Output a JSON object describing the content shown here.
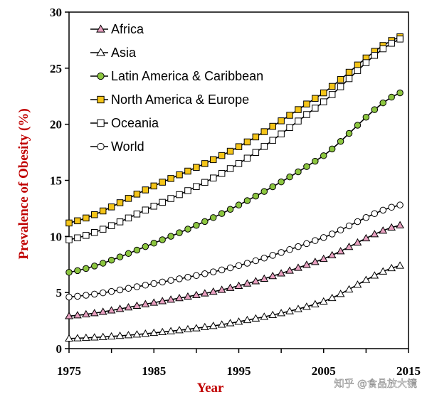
{
  "chart_data": {
    "type": "line",
    "title": "",
    "xlabel": "Year",
    "ylabel": "Prevalence of Obesity (%)",
    "xlim": [
      1975,
      2015
    ],
    "ylim": [
      0,
      30
    ],
    "xticks": [
      1975,
      1985,
      1995,
      2005,
      2015
    ],
    "yticks": [
      0,
      5,
      10,
      15,
      20,
      25,
      30
    ],
    "x_start": 1975,
    "x_end": 2014,
    "legend_position": "top-left",
    "series": [
      {
        "name": "Africa",
        "marker": "triangle",
        "fill": "#e8a0c0",
        "anchors": [
          [
            1975,
            2.9
          ],
          [
            1985,
            4.1
          ],
          [
            1995,
            5.6
          ],
          [
            2005,
            8.0
          ],
          [
            2014,
            11.0
          ]
        ]
      },
      {
        "name": "Asia",
        "marker": "triangle",
        "fill": "#ffffff",
        "anchors": [
          [
            1975,
            0.9
          ],
          [
            1985,
            1.4
          ],
          [
            1995,
            2.4
          ],
          [
            2005,
            4.2
          ],
          [
            2014,
            7.4
          ]
        ]
      },
      {
        "name": "Latin America & Caribbean",
        "marker": "circle",
        "fill": "#8cc63f",
        "anchors": [
          [
            1975,
            6.8
          ],
          [
            1985,
            9.4
          ],
          [
            1995,
            12.8
          ],
          [
            2005,
            17.2
          ],
          [
            2014,
            22.8
          ]
        ]
      },
      {
        "name": "North America & Europe",
        "marker": "square",
        "fill": "#f5c518",
        "anchors": [
          [
            1975,
            11.2
          ],
          [
            1985,
            14.5
          ],
          [
            1995,
            18.0
          ],
          [
            2005,
            22.8
          ],
          [
            2014,
            27.8
          ]
        ]
      },
      {
        "name": "Oceania",
        "marker": "square",
        "fill": "#ffffff",
        "anchors": [
          [
            1975,
            9.7
          ],
          [
            1985,
            12.7
          ],
          [
            1995,
            16.5
          ],
          [
            2005,
            22.0
          ],
          [
            2014,
            27.6
          ]
        ]
      },
      {
        "name": "World",
        "marker": "circle",
        "fill": "#ffffff",
        "anchors": [
          [
            1975,
            4.6
          ],
          [
            1985,
            5.8
          ],
          [
            1995,
            7.4
          ],
          [
            2005,
            9.9
          ],
          [
            2014,
            12.8
          ]
        ]
      }
    ],
    "watermark": "知乎 @食品放大镜"
  }
}
